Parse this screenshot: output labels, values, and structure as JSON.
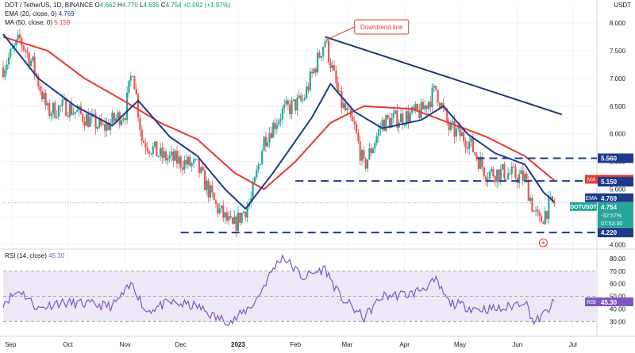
{
  "header": {
    "symbol_line": "DOT / TetherUS, 1D, BINANCE",
    "o_label": "O",
    "o": "4.662",
    "h_label": "H",
    "h": "4.770",
    "l_label": "L",
    "l": "4.635",
    "c_label": "C",
    "c": "4.754",
    "change": "+0.092 (+1.97%)",
    "ema_label": "EMA (20, close, 0)",
    "ema_value": "4.769",
    "ma_label": "MA (50, close, 0)",
    "ma_value": "5.159",
    "rsi_label": "RSI (14, close)",
    "rsi_value": "45.30"
  },
  "price_axis": {
    "currency": "USDT",
    "ticks": [
      "8.000",
      "7.500",
      "7.000",
      "6.500",
      "6.000",
      "5.500",
      "5.000",
      "4.500",
      "4.000"
    ],
    "tags": [
      {
        "label": "5.560",
        "color": "#1e3a8a"
      },
      {
        "label": "MA",
        "value": "5.159",
        "color": "#e53935"
      },
      {
        "label": "5.150",
        "color": "#1e3a8a"
      },
      {
        "label": "EMA",
        "value": "4.769",
        "color": "#1e3a8a"
      },
      {
        "label": "DOTUSDT",
        "value": "4.754",
        "sub1": "-32.57%",
        "sub2": "07:53:30",
        "color": "#26a69a"
      },
      {
        "label": "4.220",
        "color": "#1e3a8a"
      }
    ]
  },
  "rsi_axis": {
    "ticks": [
      "80.00",
      "70.00",
      "60.00",
      "50.00",
      "40.00",
      "30.00"
    ],
    "tag_label": "RSI",
    "tag_value": "45.30"
  },
  "time_axis": [
    "Sep",
    "Oct",
    "Nov",
    "Dec",
    "2023",
    "Feb",
    "Mar",
    "Apr",
    "May",
    "Jun",
    "Jul"
  ],
  "annotation": "Downtrend line",
  "colors": {
    "up": "#26a69a",
    "down": "#ef5350",
    "ema": "#1e3a8a",
    "ma": "#e53935",
    "level": "#1e3a8a",
    "trend": "#1e3a6e",
    "rsi": "#7e57c2",
    "rsi_band": "#ede7f6"
  },
  "chart_data": {
    "type": "candlestick",
    "title": "DOT / TetherUS, 1D, BINANCE",
    "y_range": [
      3.95,
      8.3
    ],
    "rsi_range": [
      22,
      85
    ],
    "horizontal_levels": [
      5.56,
      5.15,
      4.22
    ],
    "downtrend_line": [
      {
        "date": "2023-02-17",
        "price": 7.75
      },
      {
        "date": "2023-06-25",
        "price": 6.35
      }
    ],
    "price_path": [
      {
        "date": "2022-08-27",
        "price": 7.2
      },
      {
        "date": "2022-09-05",
        "price": 7.7
      },
      {
        "date": "2022-09-12",
        "price": 7.25
      },
      {
        "date": "2022-09-20",
        "price": 6.4
      },
      {
        "date": "2022-09-30",
        "price": 6.5
      },
      {
        "date": "2022-10-10",
        "price": 6.3
      },
      {
        "date": "2022-10-20",
        "price": 6.1
      },
      {
        "date": "2022-11-01",
        "price": 6.4
      },
      {
        "date": "2022-11-05",
        "price": 7.2
      },
      {
        "date": "2022-11-10",
        "price": 5.9
      },
      {
        "date": "2022-11-20",
        "price": 5.6
      },
      {
        "date": "2022-12-01",
        "price": 5.5
      },
      {
        "date": "2022-12-10",
        "price": 5.4
      },
      {
        "date": "2022-12-20",
        "price": 4.7
      },
      {
        "date": "2022-12-29",
        "price": 4.3
      },
      {
        "date": "2023-01-08",
        "price": 4.8
      },
      {
        "date": "2023-01-15",
        "price": 5.9
      },
      {
        "date": "2023-01-25",
        "price": 6.4
      },
      {
        "date": "2023-02-05",
        "price": 6.6
      },
      {
        "date": "2023-02-17",
        "price": 7.7
      },
      {
        "date": "2023-02-25",
        "price": 6.6
      },
      {
        "date": "2023-03-05",
        "price": 6.1
      },
      {
        "date": "2023-03-10",
        "price": 5.4
      },
      {
        "date": "2023-03-20",
        "price": 6.2
      },
      {
        "date": "2023-03-31",
        "price": 6.3
      },
      {
        "date": "2023-04-10",
        "price": 6.4
      },
      {
        "date": "2023-04-18",
        "price": 6.8
      },
      {
        "date": "2023-04-25",
        "price": 6.1
      },
      {
        "date": "2023-05-05",
        "price": 5.9
      },
      {
        "date": "2023-05-15",
        "price": 5.3
      },
      {
        "date": "2023-05-25",
        "price": 5.3
      },
      {
        "date": "2023-06-05",
        "price": 5.2
      },
      {
        "date": "2023-06-10",
        "price": 4.6
      },
      {
        "date": "2023-06-13",
        "price": 4.4
      },
      {
        "date": "2023-06-18",
        "price": 4.7
      },
      {
        "date": "2023-06-21",
        "price": 4.75
      }
    ],
    "ema20_path": [
      {
        "date": "2022-08-27",
        "price": 7.8
      },
      {
        "date": "2022-09-15",
        "price": 7.0
      },
      {
        "date": "2022-10-05",
        "price": 6.5
      },
      {
        "date": "2022-10-25",
        "price": 6.15
      },
      {
        "date": "2022-11-08",
        "price": 6.6
      },
      {
        "date": "2022-11-25",
        "price": 5.95
      },
      {
        "date": "2022-12-10",
        "price": 5.6
      },
      {
        "date": "2022-12-25",
        "price": 5.0
      },
      {
        "date": "2023-01-05",
        "price": 4.65
      },
      {
        "date": "2023-01-20",
        "price": 5.3
      },
      {
        "date": "2023-02-10",
        "price": 6.3
      },
      {
        "date": "2023-02-20",
        "price": 6.9
      },
      {
        "date": "2023-03-05",
        "price": 6.4
      },
      {
        "date": "2023-03-20",
        "price": 6.1
      },
      {
        "date": "2023-04-10",
        "price": 6.25
      },
      {
        "date": "2023-04-22",
        "price": 6.5
      },
      {
        "date": "2023-05-05",
        "price": 6.0
      },
      {
        "date": "2023-05-20",
        "price": 5.65
      },
      {
        "date": "2023-06-05",
        "price": 5.45
      },
      {
        "date": "2023-06-15",
        "price": 4.95
      },
      {
        "date": "2023-06-21",
        "price": 4.77
      }
    ],
    "ma50_path": [
      {
        "date": "2022-08-27",
        "price": 7.75
      },
      {
        "date": "2022-09-20",
        "price": 7.5
      },
      {
        "date": "2022-10-10",
        "price": 7.0
      },
      {
        "date": "2022-10-31",
        "price": 6.6
      },
      {
        "date": "2022-11-20",
        "price": 6.2
      },
      {
        "date": "2022-12-10",
        "price": 5.9
      },
      {
        "date": "2022-12-30",
        "price": 5.3
      },
      {
        "date": "2023-01-15",
        "price": 5.0
      },
      {
        "date": "2023-02-01",
        "price": 5.5
      },
      {
        "date": "2023-02-20",
        "price": 6.2
      },
      {
        "date": "2023-03-10",
        "price": 6.5
      },
      {
        "date": "2023-04-05",
        "price": 6.45
      },
      {
        "date": "2023-04-25",
        "price": 6.2
      },
      {
        "date": "2023-05-15",
        "price": 5.95
      },
      {
        "date": "2023-06-05",
        "price": 5.6
      },
      {
        "date": "2023-06-21",
        "price": 5.16
      }
    ],
    "rsi_path": [
      {
        "date": "2022-08-27",
        "value": 45
      },
      {
        "date": "2022-09-05",
        "value": 55
      },
      {
        "date": "2022-09-15",
        "value": 40
      },
      {
        "date": "2022-09-25",
        "value": 45
      },
      {
        "date": "2022-10-10",
        "value": 44
      },
      {
        "date": "2022-10-25",
        "value": 42
      },
      {
        "date": "2022-11-05",
        "value": 60
      },
      {
        "date": "2022-11-12",
        "value": 38
      },
      {
        "date": "2022-11-25",
        "value": 45
      },
      {
        "date": "2022-12-10",
        "value": 42
      },
      {
        "date": "2022-12-20",
        "value": 33
      },
      {
        "date": "2022-12-29",
        "value": 30
      },
      {
        "date": "2023-01-10",
        "value": 45
      },
      {
        "date": "2023-01-20",
        "value": 72
      },
      {
        "date": "2023-01-25",
        "value": 82
      },
      {
        "date": "2023-02-05",
        "value": 65
      },
      {
        "date": "2023-02-17",
        "value": 72
      },
      {
        "date": "2023-02-25",
        "value": 50
      },
      {
        "date": "2023-03-10",
        "value": 33
      },
      {
        "date": "2023-03-20",
        "value": 50
      },
      {
        "date": "2023-04-05",
        "value": 52
      },
      {
        "date": "2023-04-18",
        "value": 62
      },
      {
        "date": "2023-04-25",
        "value": 45
      },
      {
        "date": "2023-05-10",
        "value": 40
      },
      {
        "date": "2023-05-25",
        "value": 40
      },
      {
        "date": "2023-06-05",
        "value": 47
      },
      {
        "date": "2023-06-10",
        "value": 29
      },
      {
        "date": "2023-06-15",
        "value": 35
      },
      {
        "date": "2023-06-21",
        "value": 45.3
      }
    ]
  }
}
